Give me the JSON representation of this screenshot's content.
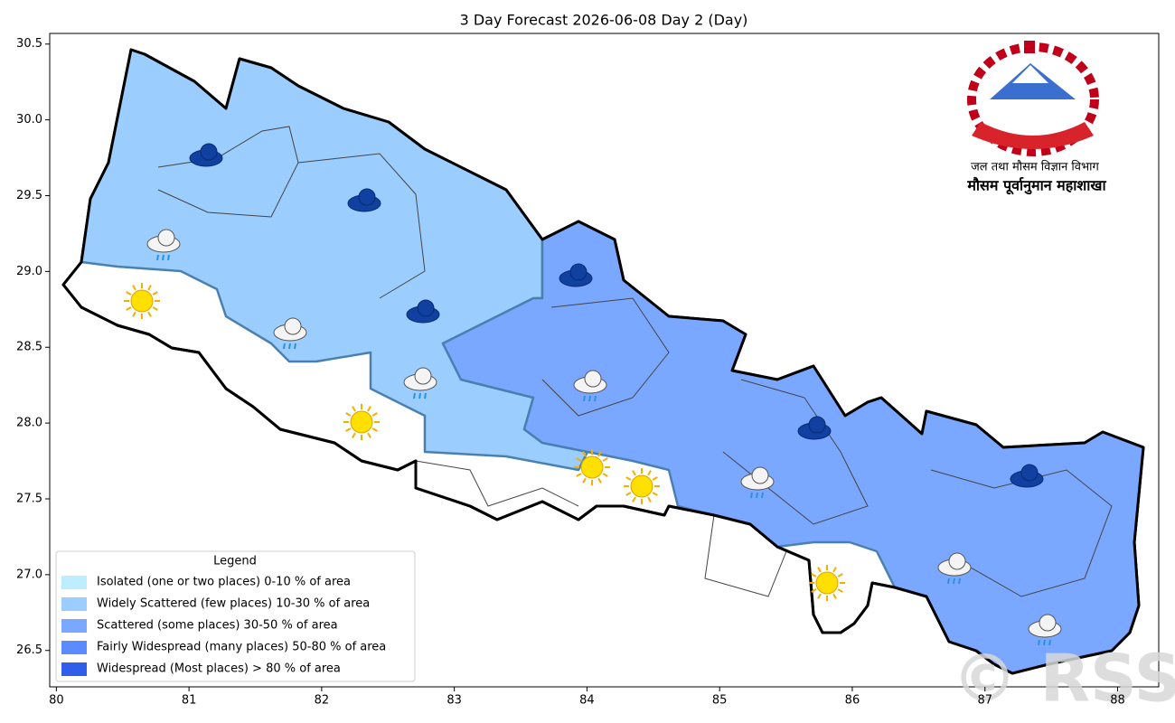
{
  "map": {
    "title": "3 Day Forecast 2026-06-08 Day 2 (Day)",
    "xlim": [
      79.95,
      88.31
    ],
    "ylim": [
      26.26,
      30.57
    ],
    "xticks": [
      80,
      81,
      82,
      83,
      84,
      85,
      86,
      87,
      88
    ],
    "yticks": [
      {
        "value": 26.5,
        "label": "26.5"
      },
      {
        "value": 27,
        "label": "27.0"
      },
      {
        "value": 27.5,
        "label": "27.5"
      },
      {
        "value": 28,
        "label": "28.0"
      },
      {
        "value": 28.5,
        "label": "28.5"
      },
      {
        "value": 29,
        "label": "29.0"
      },
      {
        "value": 29.5,
        "label": "29.5"
      },
      {
        "value": 30,
        "label": "30.0"
      },
      {
        "value": 30.5,
        "label": "30.5"
      }
    ],
    "legend": {
      "title": "Legend",
      "items": [
        {
          "label": "Isolated (one or two places)  0-10 % of area",
          "color": "#bdeeff"
        },
        {
          "label": "Widely Scattered (few places)  10-30 % of area",
          "color": "#9ccdff"
        },
        {
          "label": "Scattered (some places)  30-50 % of area",
          "color": "#7aa7ff"
        },
        {
          "label": "Fairly Widespread (many places)  50-80 % of area",
          "color": "#5a8cff"
        },
        {
          "label": "Widespread (Most places) > 80 % of area",
          "color": "#2f5fe8"
        }
      ]
    },
    "department": "जल तथा मौसम विज्ञान विभाग",
    "division": "मौसम पूर्वानुमान महाशाखा",
    "watermark": "© RSS"
  }
}
